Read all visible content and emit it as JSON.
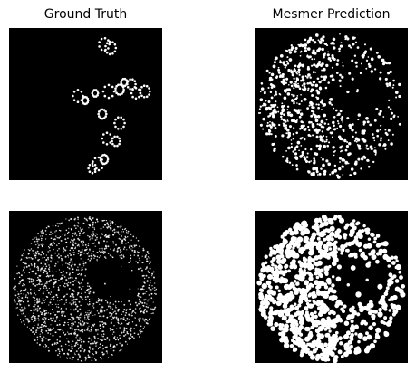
{
  "figure": {
    "titles": [
      "Ground Truth",
      "Mesmer Prediction"
    ],
    "panels": [
      {
        "name": "ground-truth-top",
        "content": "sparse-cells"
      },
      {
        "name": "mesmer-prediction-top",
        "content": "dense-disc"
      },
      {
        "name": "ground-truth-bottom",
        "content": "fine-disc"
      },
      {
        "name": "mesmer-prediction-bottom",
        "content": "solid-disc"
      }
    ],
    "colors": {
      "background": "#ffffff",
      "panel": "#000000",
      "foreground": "#ffffff"
    }
  }
}
